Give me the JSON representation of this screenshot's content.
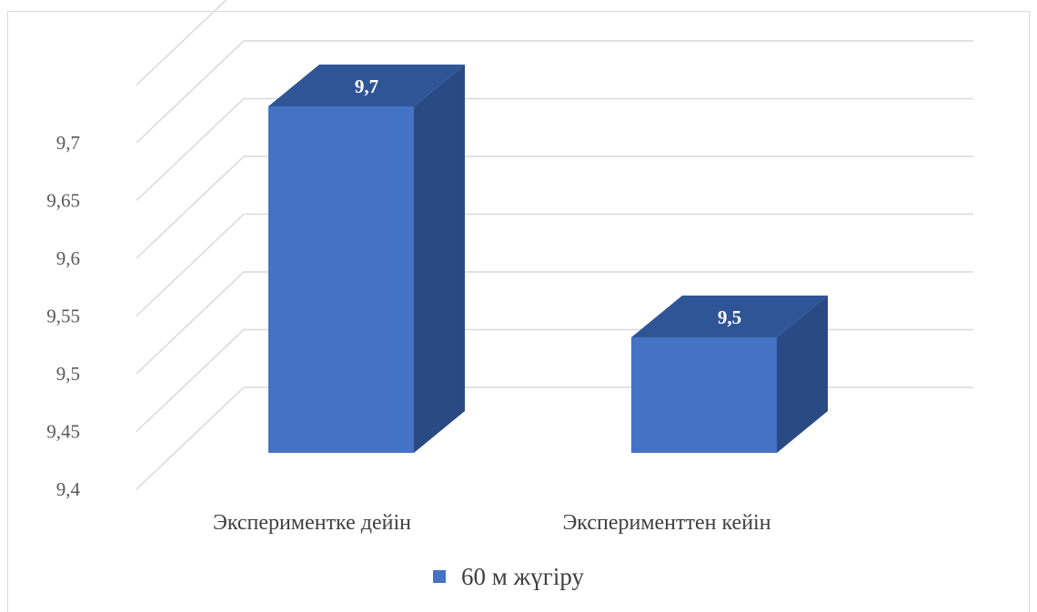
{
  "chart_data": {
    "type": "bar",
    "style": "3d-column",
    "categories": [
      "Экспериментке дейін",
      "Эксперименттен кейін"
    ],
    "series": [
      {
        "name": "60 м жүгіру",
        "values": [
          9.7,
          9.5
        ],
        "data_labels": [
          "9,7",
          "9,5"
        ]
      }
    ],
    "ylim": [
      9.4,
      9.75
    ],
    "yticks": [
      9.4,
      9.45,
      9.5,
      9.55,
      9.6,
      9.65,
      9.7
    ],
    "ytick_labels": [
      "9,4",
      "9,45",
      "9,5",
      "9,55",
      "9,6",
      "9,65",
      "9,7"
    ],
    "grid": true,
    "legend_position": "bottom",
    "colors": {
      "front": "#4472c4",
      "top": "#2f5597",
      "side": "#2a4a83",
      "grid": "#d9d9d9"
    }
  }
}
